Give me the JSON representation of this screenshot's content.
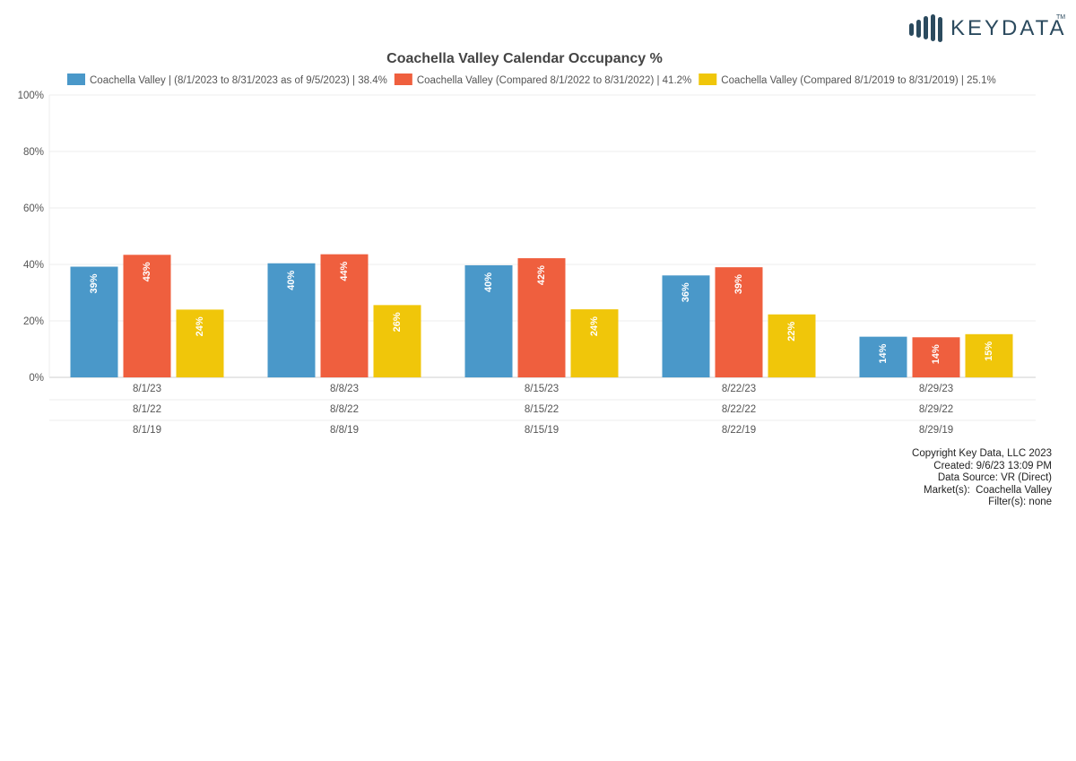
{
  "brand": {
    "logo_text": "KEYDATA",
    "logo_tm": "TM",
    "logo_color": "#2b4a5e"
  },
  "chart_data": {
    "type": "bar",
    "title": "Coachella Valley Calendar Occupancy %",
    "xlabel": "",
    "ylabel": "",
    "ylim": [
      0,
      100
    ],
    "y_ticks": [
      "0%",
      "20%",
      "40%",
      "60%",
      "80%",
      "100%"
    ],
    "y_tick_values": [
      0,
      20,
      40,
      60,
      80,
      100
    ],
    "grid": true,
    "legend_position": "top",
    "category_rows": [
      [
        "8/1/23",
        "8/8/23",
        "8/15/23",
        "8/22/23",
        "8/29/23"
      ],
      [
        "8/1/22",
        "8/8/22",
        "8/15/22",
        "8/22/22",
        "8/29/22"
      ],
      [
        "8/1/19",
        "8/8/19",
        "8/15/19",
        "8/22/19",
        "8/29/19"
      ]
    ],
    "series": [
      {
        "name": "Coachella Valley | (8/1/2023 to 8/31/2023 as of 9/5/2023) | 38.4%",
        "color": "#4a98c9",
        "values": [
          39.2,
          40.4,
          39.7,
          36.1,
          14.4
        ],
        "labels": [
          "39%",
          "40%",
          "40%",
          "36%",
          "14%"
        ]
      },
      {
        "name": "Coachella Valley (Compared 8/1/2022 to 8/31/2022) | 41.2%",
        "color": "#ef5f3e",
        "values": [
          43.4,
          43.6,
          42.2,
          39.0,
          14.2
        ],
        "labels": [
          "43%",
          "44%",
          "42%",
          "39%",
          "14%"
        ]
      },
      {
        "name": "Coachella Valley (Compared 8/1/2019 to 8/31/2019) | 25.1%",
        "color": "#f0c60a",
        "values": [
          24.0,
          25.6,
          24.1,
          22.3,
          15.3
        ],
        "labels": [
          "24%",
          "26%",
          "24%",
          "22%",
          "15%"
        ]
      }
    ]
  },
  "footer": {
    "lines": [
      "Copyright Key Data, LLC 2023",
      "Created: 9/6/23 13:09 PM",
      "Data Source: VR (Direct)",
      "Market(s):  Coachella Valley",
      "Filter(s): none"
    ]
  }
}
